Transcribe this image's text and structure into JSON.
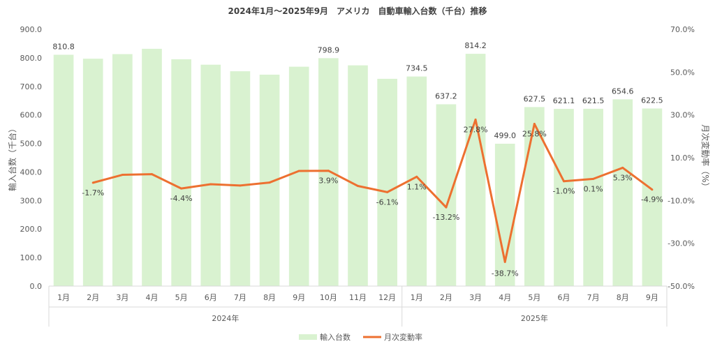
{
  "chart_data": {
    "type": "bar+line",
    "title": "2024年1月～2025年9月　アメリカ　自動車輸入台数（千台）推移",
    "categories": [
      "1月",
      "2月",
      "3月",
      "4月",
      "5月",
      "6月",
      "7月",
      "8月",
      "9月",
      "10月",
      "11月",
      "12月",
      "1月",
      "2月",
      "3月",
      "4月",
      "5月",
      "6月",
      "7月",
      "8月",
      "9月"
    ],
    "groups": [
      {
        "label": "2024年",
        "count": 12
      },
      {
        "label": "2025年",
        "count": 9
      }
    ],
    "series": [
      {
        "name": "輸入台数",
        "type": "bar",
        "axis": "left",
        "color": "#d9f2d0",
        "values": [
          810.8,
          797.0,
          813.0,
          831.7,
          795.1,
          776.0,
          753.0,
          741.0,
          768.9,
          798.9,
          773.7,
          726.5,
          734.5,
          637.2,
          814.2,
          499.0,
          627.5,
          621.1,
          621.5,
          654.6,
          622.5
        ],
        "labels": [
          "810.8",
          null,
          null,
          null,
          null,
          null,
          null,
          null,
          null,
          "798.9",
          null,
          null,
          "734.5",
          "637.2",
          "814.2",
          "499.0",
          "627.5",
          "621.1",
          "621.5",
          "654.6",
          "622.5"
        ]
      },
      {
        "name": "月次変動率",
        "type": "line",
        "axis": "right",
        "color": "#ed7030",
        "values": [
          null,
          -1.7,
          2.0,
          2.3,
          -4.4,
          -2.4,
          -3.0,
          -1.6,
          3.8,
          3.9,
          -3.2,
          -6.1,
          1.1,
          -13.2,
          27.8,
          -38.7,
          25.8,
          -1.0,
          0.1,
          5.3,
          -4.9
        ],
        "labels": [
          null,
          "-1.7%",
          null,
          null,
          "-4.4%",
          null,
          null,
          null,
          null,
          "3.9%",
          null,
          "-6.1%",
          "1.1%",
          "-13.2%",
          "27.8%",
          "-38.7%",
          "25.8%",
          "-1.0%",
          "0.1%",
          "5.3%",
          "-4.9%"
        ]
      }
    ],
    "ylabel": "輸入台数（千台）",
    "y2label": "月次変動率（%）",
    "ylim": [
      0,
      900
    ],
    "yticks": [
      "0.0",
      "100.0",
      "200.0",
      "300.0",
      "400.0",
      "500.0",
      "600.0",
      "700.0",
      "800.0",
      "900.0"
    ],
    "y2lim": [
      -50,
      70
    ],
    "y2ticks": [
      "-50.0%",
      "-30.0%",
      "-10.0%",
      "10.0%",
      "30.0%",
      "50.0%",
      "70.0%"
    ],
    "legend": "bottom",
    "grid": false
  }
}
